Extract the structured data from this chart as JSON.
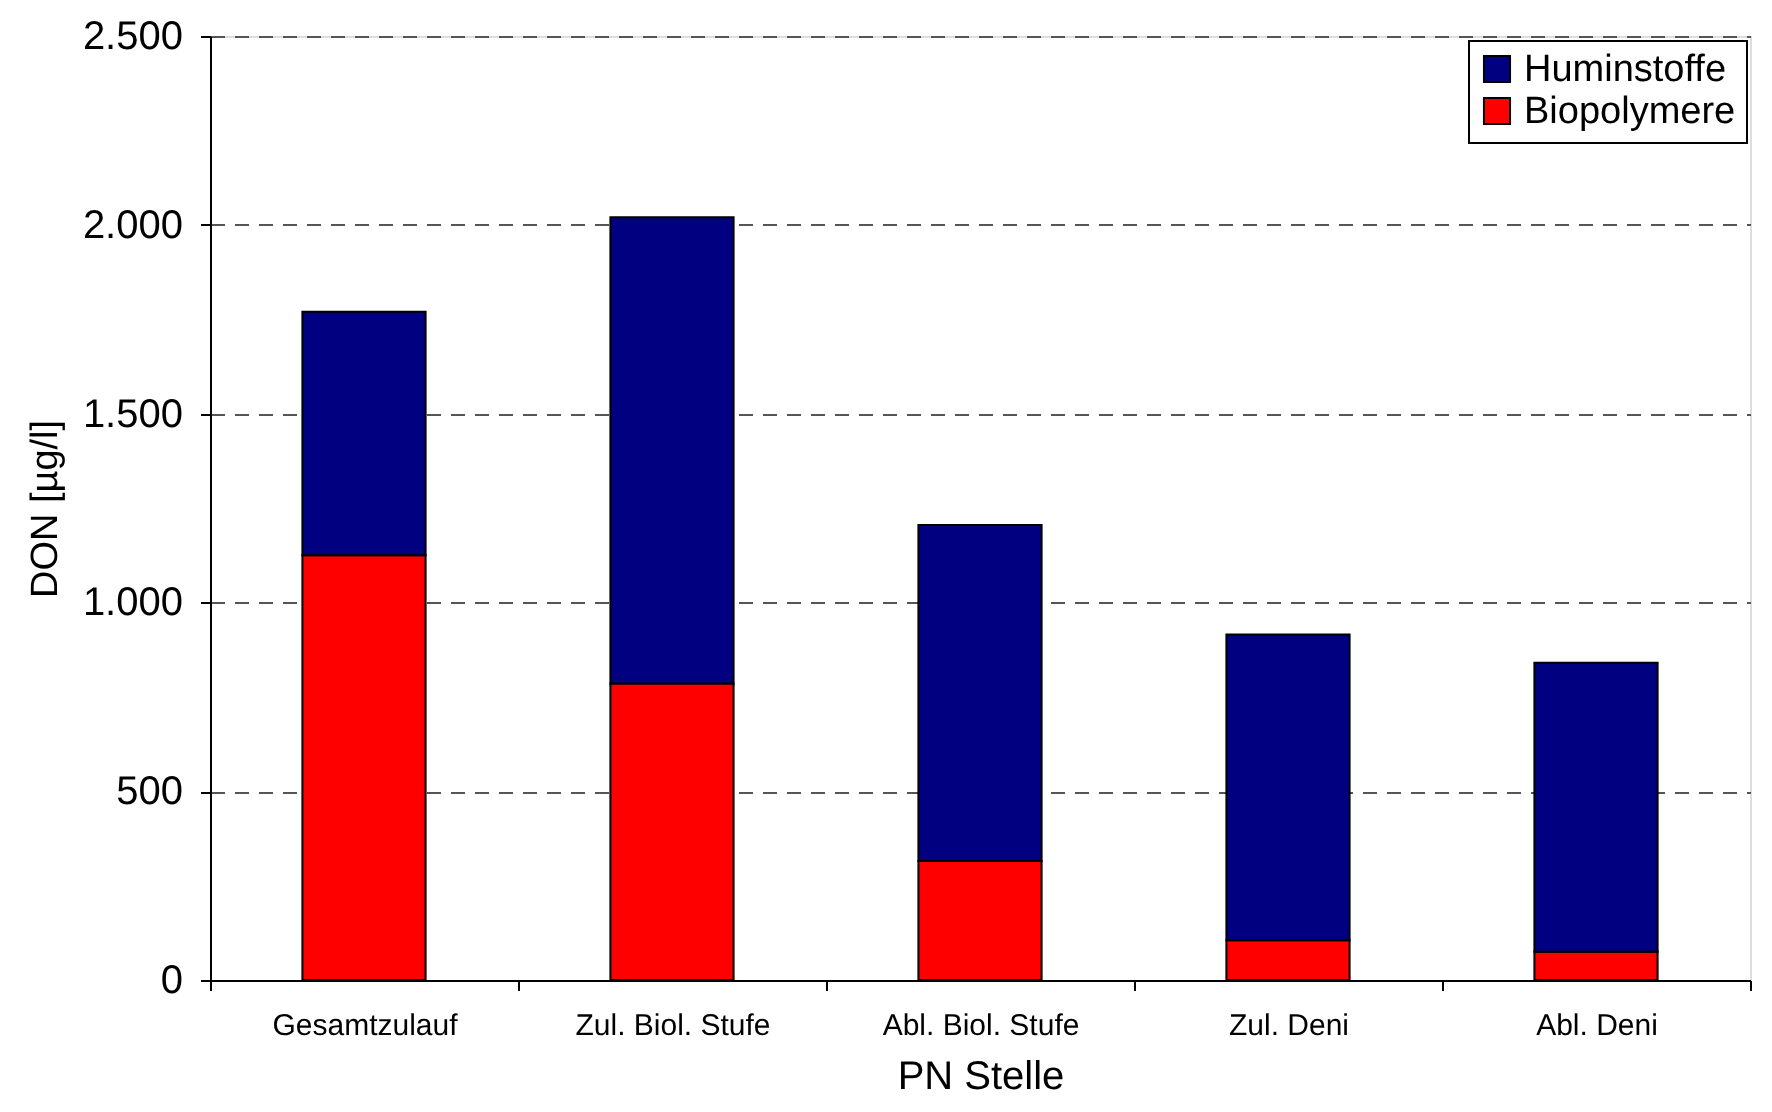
{
  "chart_data": {
    "type": "bar",
    "stacked": true,
    "xlabel": "PN Stelle",
    "ylabel": "DON [µg/l]",
    "categories": [
      "Gesamtzulauf",
      "Zul. Biol. Stufe",
      "Abl. Biol. Stufe",
      "Zul. Deni",
      "Abl. Deni"
    ],
    "series": [
      {
        "name": "Biopolymere",
        "color": "#ff0000",
        "values": [
          1125,
          785,
          315,
          105,
          75
        ]
      },
      {
        "name": "Huminstoffe",
        "color": "#000080",
        "values": [
          645,
          1235,
          890,
          810,
          765
        ]
      }
    ],
    "ylim": [
      0,
      2500
    ],
    "yticks": [
      0,
      500,
      {
        "value": 1000,
        "label": "1.000"
      },
      {
        "value": 1500,
        "label": "1.500"
      },
      {
        "value": 2000,
        "label": "2.000"
      },
      {
        "value": 2500,
        "label": "2.500"
      }
    ],
    "grid": "y",
    "legend": "top right"
  }
}
